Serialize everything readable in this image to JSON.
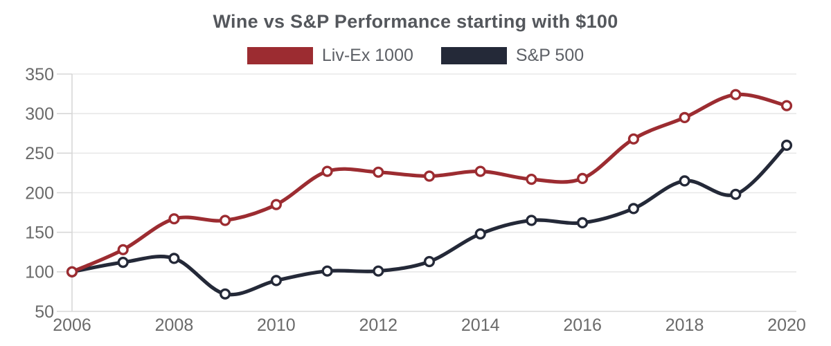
{
  "title": "Wine vs S&P Performance starting with $100",
  "legend": {
    "items": [
      {
        "label": "Liv-Ex 1000",
        "color": "#9c2c31"
      },
      {
        "label": "S&P 500",
        "color": "#242938"
      }
    ]
  },
  "chart_data": {
    "type": "line",
    "title": "Wine vs S&P Performance starting with $100",
    "x": [
      2006,
      2007,
      2008,
      2009,
      2010,
      2011,
      2012,
      2013,
      2014,
      2015,
      2016,
      2017,
      2018,
      2019,
      2020
    ],
    "series": [
      {
        "name": "Liv-Ex 1000",
        "color": "#9c2c31",
        "values": [
          100,
          128,
          167,
          165,
          185,
          227,
          226,
          221,
          227,
          217,
          218,
          268,
          295,
          324,
          310
        ]
      },
      {
        "name": "S&P 500",
        "color": "#242938",
        "values": [
          100,
          112,
          117,
          72,
          89,
          101,
          101,
          113,
          148,
          165,
          162,
          180,
          215,
          198,
          260
        ]
      }
    ],
    "xticks": [
      2006,
      2008,
      2010,
      2012,
      2014,
      2016,
      2018,
      2020
    ],
    "yticks": [
      50,
      100,
      150,
      200,
      250,
      300,
      350
    ],
    "xlim": [
      2006,
      2020
    ],
    "ylim": [
      50,
      350
    ],
    "grid": "horizontal",
    "legend_position": "top",
    "marker": "open-circle",
    "smooth": true
  },
  "colors": {
    "background": "#ffffff",
    "grid_line": "#e8e8e8",
    "axis_line": "#d7d7d7",
    "tick_mark": "#d7d7d7",
    "tick_label": "#6a6a6a",
    "marker_fill": "#ffffff"
  }
}
